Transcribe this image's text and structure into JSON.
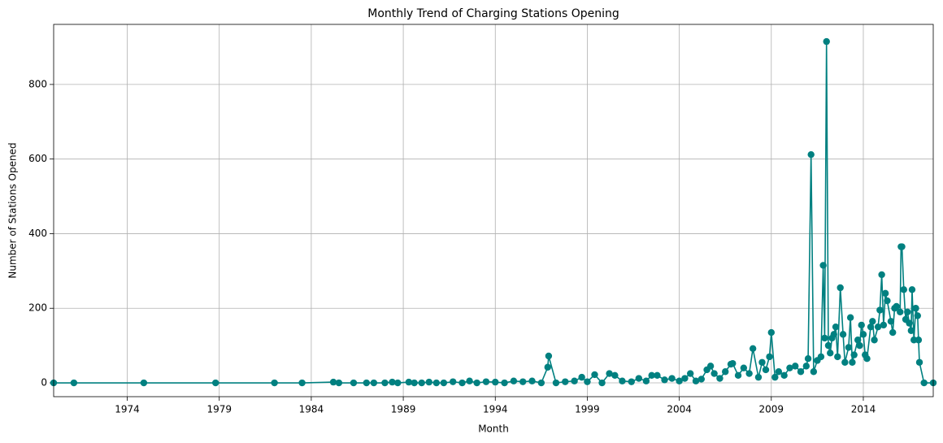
{
  "chart_data": {
    "type": "line",
    "title": "Monthly Trend of Charging Stations Opening",
    "x_label": "Month",
    "y_label": "Number of Stations Opened",
    "color": "#008080",
    "grid": true,
    "xlim": [
      1970.0,
      2017.8
    ],
    "ylim": [
      -37,
      961
    ],
    "xticks": [
      1974,
      1979,
      1984,
      1989,
      1994,
      1999,
      2004,
      2009,
      2014
    ],
    "yticks": [
      0,
      200,
      400,
      600,
      800
    ],
    "x": [
      1970.0,
      1971.1,
      1974.9,
      1978.8,
      1982.0,
      1983.5,
      1985.2,
      1985.5,
      1986.3,
      1987.0,
      1987.4,
      1988.0,
      1988.4,
      1988.7,
      1989.3,
      1989.6,
      1990.0,
      1990.4,
      1990.8,
      1991.2,
      1991.7,
      1992.2,
      1992.6,
      1993.0,
      1993.5,
      1994.0,
      1994.5,
      1995.0,
      1995.5,
      1996.0,
      1996.5,
      1996.85,
      1996.9,
      1997.3,
      1997.8,
      1998.3,
      1998.7,
      1999.0,
      1999.4,
      1999.8,
      2000.2,
      2000.5,
      2000.9,
      2001.4,
      2001.8,
      2002.2,
      2002.5,
      2002.8,
      2003.2,
      2003.6,
      2004.0,
      2004.3,
      2004.6,
      2004.9,
      2005.2,
      2005.5,
      2005.7,
      2005.9,
      2006.2,
      2006.5,
      2006.8,
      2006.9,
      2007.2,
      2007.5,
      2007.8,
      2008.0,
      2008.3,
      2008.5,
      2008.7,
      2008.9,
      2009.0,
      2009.2,
      2009.4,
      2009.7,
      2010.0,
      2010.3,
      2010.6,
      2010.9,
      2011.0,
      2011.16,
      2011.3,
      2011.5,
      2011.7,
      2011.82,
      2011.9,
      2012.0,
      2012.1,
      2012.2,
      2012.3,
      2012.4,
      2012.5,
      2012.6,
      2012.75,
      2012.9,
      2013.0,
      2013.2,
      2013.3,
      2013.4,
      2013.5,
      2013.7,
      2013.8,
      2013.9,
      2014.0,
      2014.1,
      2014.2,
      2014.4,
      2014.5,
      2014.6,
      2014.8,
      2014.9,
      2015.0,
      2015.1,
      2015.2,
      2015.3,
      2015.5,
      2015.6,
      2015.7,
      2015.8,
      2016.0,
      2016.05,
      2016.1,
      2016.2,
      2016.3,
      2016.4,
      2016.5,
      2016.6,
      2016.65,
      2016.75,
      2016.85,
      2016.95,
      2017.0,
      2017.05,
      2017.3,
      2017.8
    ],
    "values": [
      0,
      0,
      0,
      0,
      0,
      0,
      2,
      0,
      0,
      0,
      0,
      0,
      2,
      0,
      2,
      0,
      0,
      2,
      0,
      0,
      3,
      0,
      5,
      0,
      3,
      2,
      0,
      5,
      3,
      5,
      0,
      42,
      72,
      0,
      3,
      5,
      15,
      3,
      22,
      0,
      25,
      20,
      5,
      3,
      12,
      5,
      20,
      20,
      8,
      12,
      5,
      12,
      25,
      5,
      10,
      35,
      45,
      25,
      12,
      30,
      50,
      52,
      20,
      40,
      25,
      92,
      15,
      55,
      35,
      70,
      135,
      15,
      30,
      20,
      40,
      45,
      30,
      45,
      65,
      612,
      30,
      60,
      70,
      315,
      120,
      915,
      100,
      80,
      120,
      130,
      150,
      70,
      255,
      130,
      55,
      95,
      175,
      55,
      75,
      115,
      100,
      155,
      130,
      75,
      65,
      150,
      165,
      115,
      150,
      195,
      290,
      155,
      240,
      220,
      165,
      135,
      200,
      205,
      190,
      365,
      365,
      250,
      170,
      190,
      160,
      140,
      250,
      115,
      200,
      180,
      115,
      55,
      0,
      0
    ]
  }
}
